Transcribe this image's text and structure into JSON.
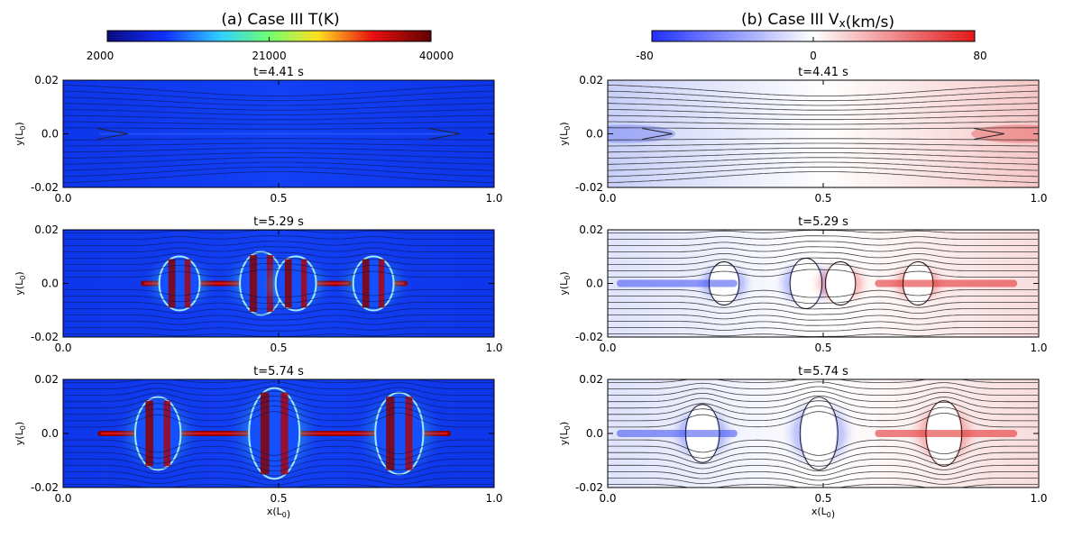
{
  "chart_data": [
    {
      "type": "heatmap",
      "title": "(a) Case III T(K)",
      "variable": "T(K)",
      "colormap": "rainbow (blue-cyan-green-yellow-red-darkred)",
      "colorbar": {
        "ticks": [
          "2000",
          "21000",
          "40000"
        ],
        "range": [
          2000,
          40000
        ]
      },
      "xlabel": "x(L0)",
      "ylabel": "y(L0)",
      "xlim": [
        0.0,
        1.0
      ],
      "ylim": [
        -0.02,
        0.02
      ],
      "x_ticks": [
        "0.0",
        "0.5",
        "1.0"
      ],
      "y_ticks": [
        "0.02",
        "0.0",
        "-0.02"
      ],
      "panels": [
        {
          "time_label": "t=4.41 s",
          "islands": []
        },
        {
          "time_label": "t=5.29 s",
          "islands": [
            {
              "x": 0.27,
              "size": 0.6
            },
            {
              "x": 0.46,
              "size": 0.7
            },
            {
              "x": 0.54,
              "size": 0.6
            },
            {
              "x": 0.72,
              "size": 0.6
            }
          ],
          "hot_segments": [
            [
              0.18,
              0.24
            ],
            [
              0.31,
              0.43
            ],
            [
              0.48,
              0.52
            ],
            [
              0.57,
              0.67
            ],
            [
              0.76,
              0.8
            ]
          ]
        },
        {
          "time_label": "t=5.74 s",
          "islands": [
            {
              "x": 0.22,
              "size": 0.8
            },
            {
              "x": 0.49,
              "size": 1.0
            },
            {
              "x": 0.78,
              "size": 0.9
            }
          ],
          "hot_segments": [
            [
              0.08,
              0.18
            ],
            [
              0.25,
              0.45
            ],
            [
              0.54,
              0.75
            ],
            [
              0.82,
              0.9
            ]
          ]
        }
      ]
    },
    {
      "type": "heatmap",
      "title": "(b) Case III Vx(km/s)",
      "variable": "Vx(km/s)",
      "colormap": "diverging (blue-white-red)",
      "colorbar": {
        "ticks": [
          "-80",
          "0",
          "80"
        ],
        "range": [
          -80,
          80
        ]
      },
      "xlabel": "x(L0)",
      "ylabel": "y(L0)",
      "xlim": [
        0.0,
        1.0
      ],
      "ylim": [
        -0.02,
        0.02
      ],
      "x_ticks": [
        "0.0",
        "0.5",
        "1.0"
      ],
      "y_ticks": [
        "0.02",
        "0.0",
        "-0.02"
      ],
      "panels": [
        {
          "time_label": "t=4.41 s",
          "islands": []
        },
        {
          "time_label": "t=5.29 s",
          "islands": [
            {
              "x": 0.27,
              "size": 0.6
            },
            {
              "x": 0.46,
              "size": 0.7
            },
            {
              "x": 0.54,
              "size": 0.6
            },
            {
              "x": 0.72,
              "size": 0.6
            }
          ]
        },
        {
          "time_label": "t=5.74 s",
          "islands": [
            {
              "x": 0.22,
              "size": 0.8
            },
            {
              "x": 0.49,
              "size": 1.0
            },
            {
              "x": 0.78,
              "size": 0.9
            }
          ]
        }
      ]
    }
  ]
}
